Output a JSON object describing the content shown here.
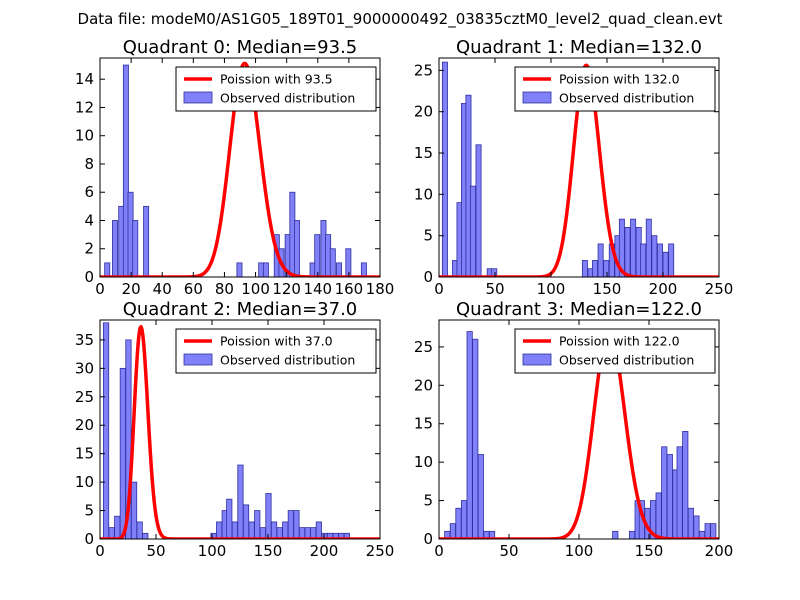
{
  "suptitle": "Data file: modeM0/AS1G05_189T01_9000000492_03835cztM0_level2_quad_clean.evt",
  "colors": {
    "hist_fill": "#8080f8",
    "hist_edge": "#3030a0",
    "curve": "#ff0000",
    "frame": "#000000"
  },
  "chart_data": [
    {
      "type": "bar",
      "title": "Quadrant 0: Median=93.5",
      "xlim": [
        0,
        180
      ],
      "ylim": [
        0,
        15.5
      ],
      "xticks": [
        0,
        20,
        40,
        60,
        80,
        100,
        120,
        140,
        160,
        180
      ],
      "xtick_labels": [
        "0",
        "20",
        "40",
        "60",
        "80",
        "100",
        "120",
        "140",
        "160",
        "180"
      ],
      "yticks": [
        0,
        2,
        4,
        6,
        8,
        10,
        12,
        14
      ],
      "ytick_labels": [
        "0",
        "2",
        "4",
        "6",
        "8",
        "10",
        "12",
        "14"
      ],
      "median": 93.5,
      "curve_peak": 15.1,
      "bin_width": 3.3,
      "bins": [
        [
          3,
          1
        ],
        [
          8,
          4
        ],
        [
          12,
          5
        ],
        [
          15,
          15
        ],
        [
          18,
          6
        ],
        [
          21,
          4
        ],
        [
          28,
          5
        ],
        [
          88,
          1
        ],
        [
          102,
          1
        ],
        [
          105,
          1
        ],
        [
          112,
          3
        ],
        [
          115,
          2
        ],
        [
          119,
          3
        ],
        [
          122,
          6
        ],
        [
          125,
          4
        ],
        [
          135,
          1
        ],
        [
          138,
          3
        ],
        [
          142,
          4
        ],
        [
          145,
          3
        ],
        [
          148,
          2
        ],
        [
          152,
          1
        ],
        [
          158,
          2
        ],
        [
          168,
          1
        ]
      ],
      "legend": {
        "curve_label": "Poission with 93.5",
        "bar_label": "Observed distribution"
      }
    },
    {
      "type": "bar",
      "title": "Quadrant 1: Median=132.0",
      "xlim": [
        0,
        250
      ],
      "ylim": [
        0,
        26.5
      ],
      "xticks": [
        0,
        50,
        100,
        150,
        200,
        250
      ],
      "xtick_labels": [
        "0",
        "50",
        "100",
        "150",
        "200",
        "250"
      ],
      "yticks": [
        0,
        5,
        10,
        15,
        20,
        25
      ],
      "ytick_labels": [
        "0",
        "5",
        "10",
        "15",
        "20",
        "25"
      ],
      "median": 132.0,
      "curve_peak": 25.6,
      "bin_width": 4.6,
      "bins": [
        [
          3,
          26
        ],
        [
          12,
          2
        ],
        [
          16,
          9
        ],
        [
          20,
          21
        ],
        [
          24,
          22
        ],
        [
          28,
          11
        ],
        [
          33,
          16
        ],
        [
          43,
          1
        ],
        [
          47,
          1
        ],
        [
          128,
          2
        ],
        [
          133,
          1
        ],
        [
          137,
          2
        ],
        [
          142,
          4
        ],
        [
          147,
          2
        ],
        [
          152,
          4
        ],
        [
          157,
          5
        ],
        [
          161,
          7
        ],
        [
          166,
          6
        ],
        [
          171,
          7
        ],
        [
          176,
          6
        ],
        [
          180,
          4
        ],
        [
          185,
          7
        ],
        [
          190,
          5
        ],
        [
          195,
          4
        ],
        [
          200,
          3
        ],
        [
          205,
          4
        ]
      ],
      "legend": {
        "curve_label": "Poission with 132.0",
        "bar_label": "Observed distribution"
      }
    },
    {
      "type": "bar",
      "title": "Quadrant 2: Median=37.0",
      "xlim": [
        0,
        250
      ],
      "ylim": [
        0,
        38.5
      ],
      "xticks": [
        0,
        50,
        100,
        150,
        200,
        250
      ],
      "xtick_labels": [
        "0",
        "50",
        "100",
        "150",
        "200",
        "250"
      ],
      "yticks": [
        0,
        5,
        10,
        15,
        20,
        25,
        30,
        35
      ],
      "ytick_labels": [
        "0",
        "5",
        "10",
        "15",
        "20",
        "25",
        "30",
        "35"
      ],
      "median": 37.0,
      "curve_peak": 37.2,
      "bin_width": 4.8,
      "bins": [
        [
          3,
          38
        ],
        [
          8,
          2
        ],
        [
          13,
          4
        ],
        [
          18,
          30
        ],
        [
          23,
          35
        ],
        [
          28,
          10
        ],
        [
          33,
          3
        ],
        [
          38,
          1
        ],
        [
          99,
          1
        ],
        [
          104,
          3
        ],
        [
          109,
          5
        ],
        [
          113,
          7
        ],
        [
          118,
          3
        ],
        [
          123,
          13
        ],
        [
          128,
          6
        ],
        [
          133,
          3
        ],
        [
          138,
          5
        ],
        [
          143,
          2
        ],
        [
          148,
          8
        ],
        [
          153,
          3
        ],
        [
          158,
          2
        ],
        [
          163,
          3
        ],
        [
          168,
          5
        ],
        [
          173,
          5
        ],
        [
          178,
          2
        ],
        [
          183,
          2
        ],
        [
          188,
          2
        ],
        [
          193,
          3
        ],
        [
          198,
          1
        ],
        [
          203,
          1
        ],
        [
          208,
          1
        ],
        [
          213,
          1
        ],
        [
          218,
          1
        ]
      ],
      "legend": {
        "curve_label": "Poission with 37.0",
        "bar_label": "Observed distribution"
      }
    },
    {
      "type": "bar",
      "title": "Quadrant 3: Median=122.0",
      "xlim": [
        0,
        200
      ],
      "ylim": [
        0,
        28.5
      ],
      "xticks": [
        0,
        50,
        100,
        150,
        200
      ],
      "xtick_labels": [
        "0",
        "50",
        "100",
        "150",
        "200"
      ],
      "yticks": [
        0,
        5,
        10,
        15,
        20,
        25
      ],
      "ytick_labels": [
        "0",
        "5",
        "10",
        "15",
        "20",
        "25"
      ],
      "median": 122.0,
      "curve_peak": 27.0,
      "bin_width": 3.8,
      "bins": [
        [
          4,
          1
        ],
        [
          8,
          2
        ],
        [
          12,
          4
        ],
        [
          16,
          5
        ],
        [
          20,
          27
        ],
        [
          24,
          26
        ],
        [
          28,
          11
        ],
        [
          32,
          1
        ],
        [
          36,
          1
        ],
        [
          124,
          1
        ],
        [
          136,
          1
        ],
        [
          140,
          5
        ],
        [
          143,
          5
        ],
        [
          147,
          4
        ],
        [
          151,
          5
        ],
        [
          155,
          6
        ],
        [
          159,
          12
        ],
        [
          163,
          11
        ],
        [
          167,
          9
        ],
        [
          170,
          12
        ],
        [
          174,
          14
        ],
        [
          178,
          4
        ],
        [
          182,
          3
        ],
        [
          186,
          1
        ],
        [
          190,
          2
        ],
        [
          194,
          2
        ]
      ],
      "legend": {
        "curve_label": "Poission with 122.0",
        "bar_label": "Observed distribution"
      }
    }
  ]
}
